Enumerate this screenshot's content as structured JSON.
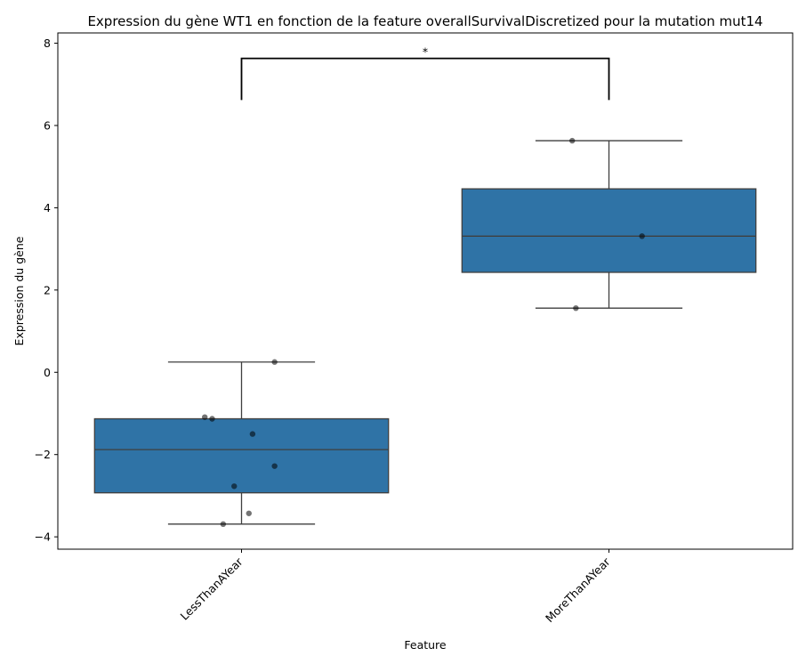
{
  "chart_data": {
    "type": "box",
    "title": "Expression du gène WT1 en fonction de la feature overallSurvivalDiscretized pour la mutation mut14",
    "xlabel": "Feature",
    "ylabel": "Expression du gène",
    "categories": [
      "LessThanAYear",
      "MoreThanAYear"
    ],
    "ylim": [
      -4.3,
      8.25
    ],
    "yticks": [
      -4,
      -2,
      0,
      2,
      4,
      6,
      8
    ],
    "ytick_labels": [
      "−4",
      "−2",
      "0",
      "2",
      "4",
      "6",
      "8"
    ],
    "grid": false,
    "box_color": "#2f73a6",
    "boxes": [
      {
        "category": "LessThanAYear",
        "whisker_low": -3.69,
        "q1": -2.93,
        "median": -1.88,
        "q3": -1.13,
        "whisker_high": 0.25
      },
      {
        "category": "MoreThanAYear",
        "whisker_low": 1.56,
        "q1": 2.43,
        "median": 3.31,
        "q3": 4.46,
        "whisker_high": 5.63
      }
    ],
    "points": [
      {
        "category": "LessThanAYear",
        "jitter": 0.09,
        "y": 0.25
      },
      {
        "category": "LessThanAYear",
        "jitter": -0.1,
        "y": -1.09
      },
      {
        "category": "LessThanAYear",
        "jitter": -0.08,
        "y": -1.13
      },
      {
        "category": "LessThanAYear",
        "jitter": 0.03,
        "y": -1.5
      },
      {
        "category": "LessThanAYear",
        "jitter": 0.09,
        "y": -2.28
      },
      {
        "category": "LessThanAYear",
        "jitter": -0.02,
        "y": -2.77
      },
      {
        "category": "LessThanAYear",
        "jitter": 0.02,
        "y": -3.43
      },
      {
        "category": "LessThanAYear",
        "jitter": -0.05,
        "y": -3.69
      },
      {
        "category": "MoreThanAYear",
        "jitter": -0.1,
        "y": 5.63
      },
      {
        "category": "MoreThanAYear",
        "jitter": 0.09,
        "y": 3.31
      },
      {
        "category": "MoreThanAYear",
        "jitter": -0.09,
        "y": 1.56
      }
    ],
    "significance": {
      "between": [
        "LessThanAYear",
        "MoreThanAYear"
      ],
      "label": "*",
      "bracket_y": 7.63,
      "bracket_bottom": 6.62
    }
  }
}
